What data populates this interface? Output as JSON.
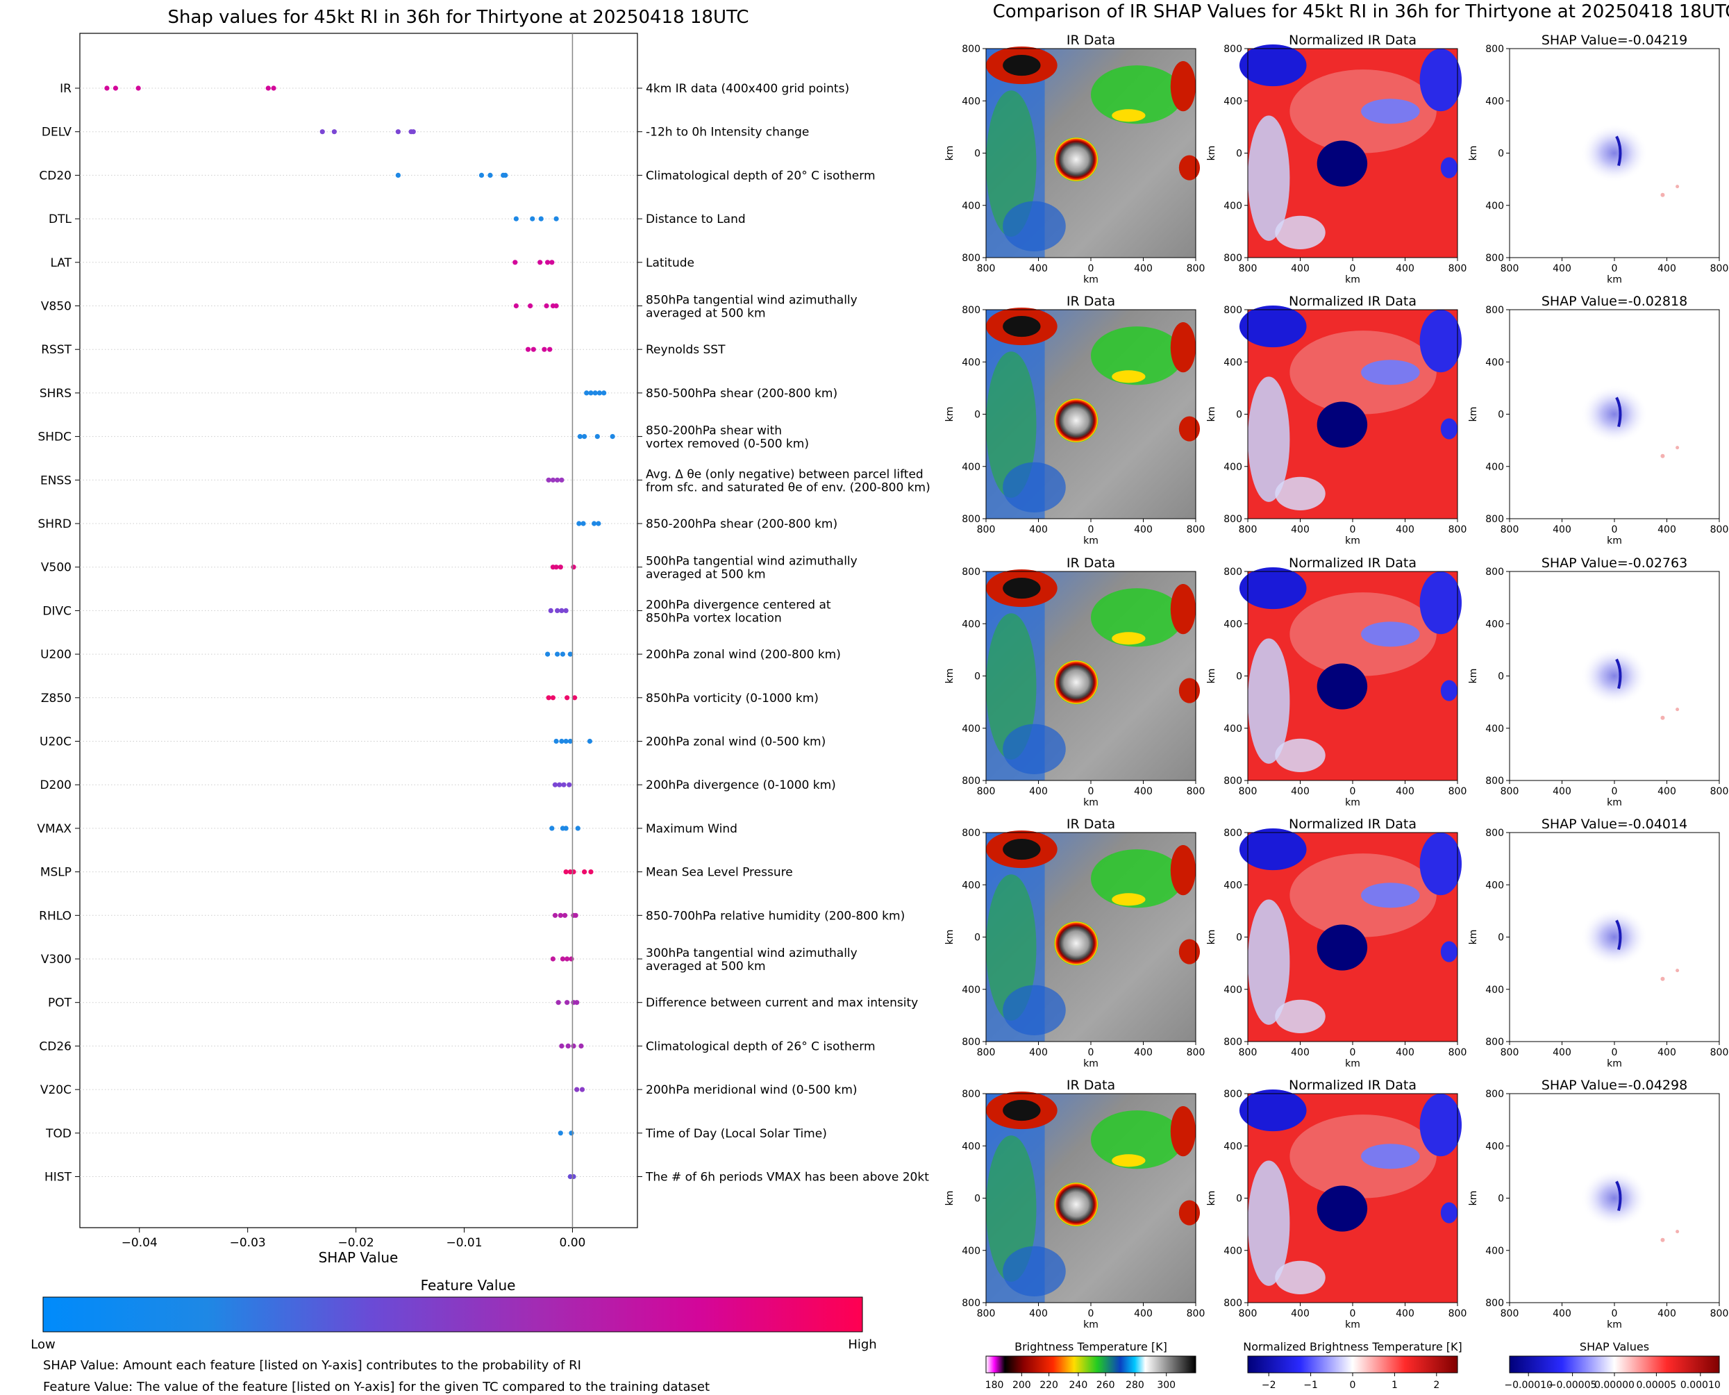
{
  "left_title": "Shap values for 45kt RI in 36h for Thirtyone at 20250418 18UTC",
  "right_title": "Comparison of IR SHAP Values for 45kt RI in 36h for Thirtyone at 20250418 18UTC",
  "xlabel": "SHAP Value",
  "colorbar": {
    "title": "Feature Value",
    "low": "Low",
    "high": "High",
    "stops": [
      "#008bfb",
      "#1e88e5",
      "#6a4bd6",
      "#a22cb4",
      "#d3069a",
      "#ff0051"
    ]
  },
  "notes": [
    "SHAP Value: Amount each feature [listed on Y-axis] contributes to the probability of RI",
    "Feature Value: The value of the feature [listed on Y-axis] for the given TC compared to the training dataset"
  ],
  "panel_titles": {
    "ir": "IR Data",
    "norm": "Normalized IR Data"
  },
  "shap_titles": [
    "SHAP Value=-0.04219",
    "SHAP Value=-0.02818",
    "SHAP Value=-0.02763",
    "SHAP Value=-0.04014",
    "SHAP Value=-0.04298"
  ],
  "panel_axis": {
    "label": "km",
    "ticks": [
      "800",
      "400",
      "0",
      "400",
      "800"
    ]
  },
  "bottom_colorbars": [
    {
      "label": "Brightness Temperature [K]",
      "ticks": [
        "180",
        "200",
        "220",
        "240",
        "260",
        "280",
        "300"
      ]
    },
    {
      "label": "Normalized Brightness Temperature [K]",
      "ticks": [
        "−2",
        "−1",
        "0",
        "1",
        "2"
      ]
    },
    {
      "label": "SHAP Values",
      "ticks": [
        "−0.00010",
        "−0.00005",
        "0.00000",
        "0.00005",
        "0.00010"
      ]
    }
  ],
  "chart_data": {
    "type": "scatter",
    "title": "Shap values for 45kt RI in 36h for Thirtyone at 20250418 18UTC",
    "xlabel": "SHAP Value",
    "xlim": [
      -0.0455,
      0.006
    ],
    "xticks": [
      -0.04,
      -0.03,
      -0.02,
      -0.01,
      0.0
    ],
    "xtick_labels": [
      "−0.04",
      "−0.03",
      "−0.02",
      "−0.01",
      "0.00"
    ],
    "grid": "horizontal dotted",
    "features": [
      {
        "name": "IR",
        "desc": "4km IR data (400x400 grid points)",
        "color": "#d3069a",
        "values": [
          -0.043,
          -0.0422,
          -0.0401,
          -0.0281,
          -0.0276
        ]
      },
      {
        "name": "DELV",
        "desc": "-12h to 0h Intensity change",
        "color": "#7b46d4",
        "values": [
          -0.0231,
          -0.022,
          -0.0161,
          -0.0149,
          -0.0147
        ]
      },
      {
        "name": "CD20",
        "desc": "Climatological depth of 20° C isotherm",
        "color": "#1e88e5",
        "values": [
          -0.0161,
          -0.0084,
          -0.0076,
          -0.0064,
          -0.0062
        ]
      },
      {
        "name": "DTL",
        "desc": "Distance to Land",
        "color": "#1e88e5",
        "values": [
          -0.0052,
          -0.0037,
          -0.0029,
          -0.0015
        ]
      },
      {
        "name": "LAT",
        "desc": "Latitude",
        "color": "#d3069a",
        "values": [
          -0.0053,
          -0.003,
          -0.0023,
          -0.0019
        ]
      },
      {
        "name": "V850",
        "desc": "850hPa tangential wind azimuthally averaged at 500 km",
        "color": "#d3069a",
        "values": [
          -0.0052,
          -0.0039,
          -0.0024,
          -0.0018,
          -0.0015
        ]
      },
      {
        "name": "RSST",
        "desc": "Reynolds SST",
        "color": "#d3069a",
        "values": [
          -0.0041,
          -0.0036,
          -0.0026,
          -0.0021
        ]
      },
      {
        "name": "SHRS",
        "desc": "850-500hPa shear (200-800 km)",
        "color": "#1e88e5",
        "values": [
          0.0013,
          0.0017,
          0.0021,
          0.0025,
          0.0029
        ]
      },
      {
        "name": "SHDC",
        "desc": "850-200hPa shear with vortex removed (0-500 km)",
        "color": "#1e88e5",
        "values": [
          0.0007,
          0.0011,
          0.0023,
          0.0037
        ]
      },
      {
        "name": "ENSS",
        "desc": "Avg. Δ θe (only negative) between parcel lifted from sfc. and saturated θe of env. (200-800 km)",
        "color": "#9b38c0",
        "values": [
          -0.0022,
          -0.0018,
          -0.0014,
          -0.001
        ]
      },
      {
        "name": "SHRD",
        "desc": "850-200hPa shear (200-800 km)",
        "color": "#1e88e5",
        "values": [
          0.0006,
          0.001,
          0.002,
          0.0024
        ]
      },
      {
        "name": "V500",
        "desc": "500hPa tangential wind azimuthally averaged at 500 km",
        "color": "#e00a80",
        "values": [
          -0.0018,
          -0.0015,
          -0.0011,
          0.0001
        ]
      },
      {
        "name": "DIVC",
        "desc": "200hPa divergence centered at 850hPa vortex location",
        "color": "#7b46d4",
        "values": [
          -0.002,
          -0.0014,
          -0.001,
          -0.0006
        ]
      },
      {
        "name": "U200",
        "desc": "200hPa zonal wind (200-800 km)",
        "color": "#1e88e5",
        "values": [
          -0.0023,
          -0.0014,
          -0.0009,
          -0.0002
        ]
      },
      {
        "name": "Z850",
        "desc": "850hPa vorticity (0-1000 km)",
        "color": "#ee0a6a",
        "values": [
          -0.0022,
          -0.0018,
          -0.0005,
          0.0002
        ]
      },
      {
        "name": "U20C",
        "desc": "200hPa zonal wind (0-500 km)",
        "color": "#1e88e5",
        "values": [
          -0.0015,
          -0.001,
          -0.0006,
          -0.0002,
          0.0016
        ]
      },
      {
        "name": "D200",
        "desc": "200hPa divergence (0-1000 km)",
        "color": "#7b46d4",
        "values": [
          -0.0016,
          -0.0012,
          -0.0008,
          -0.0003
        ]
      },
      {
        "name": "VMAX",
        "desc": "Maximum Wind",
        "color": "#1e88e5",
        "values": [
          -0.0019,
          -0.0009,
          -0.0006,
          0.0005
        ]
      },
      {
        "name": "MSLP",
        "desc": "Mean Sea Level Pressure",
        "color": "#ee0a6a",
        "values": [
          -0.0006,
          -0.0002,
          0.0001,
          0.0011,
          0.0017
        ]
      },
      {
        "name": "RHLO",
        "desc": "850-700hPa relative humidity (200-800 km)",
        "color": "#b320a8",
        "values": [
          -0.0016,
          -0.0011,
          -0.0007,
          0.0001,
          0.0003
        ]
      },
      {
        "name": "V300",
        "desc": "300hPa tangential wind azimuthally averaged at 500 km",
        "color": "#c2179e",
        "values": [
          -0.0018,
          -0.0009,
          -0.0005,
          -0.0001
        ]
      },
      {
        "name": "POT",
        "desc": "Difference between current and max intensity",
        "color": "#a22cb4",
        "values": [
          -0.0013,
          -0.0005,
          0.0001,
          0.0004
        ]
      },
      {
        "name": "CD26",
        "desc": "Climatological depth of 26° C isotherm",
        "color": "#a22cb4",
        "values": [
          -0.001,
          -0.0004,
          0.0001,
          0.0008
        ]
      },
      {
        "name": "V20C",
        "desc": "200hPa meridional wind (0-500 km)",
        "color": "#8a3dc8",
        "values": [
          0.0004,
          0.0009
        ]
      },
      {
        "name": "TOD",
        "desc": "Time of Day (Local Solar Time)",
        "color": "#1e88e5",
        "values": [
          -0.0011,
          -0.0001
        ]
      },
      {
        "name": "HIST",
        "desc": "The # of 6h periods VMAX has been above 20kt",
        "color": "#6a4bd6",
        "values": [
          -0.0002,
          0.0001
        ]
      }
    ]
  }
}
